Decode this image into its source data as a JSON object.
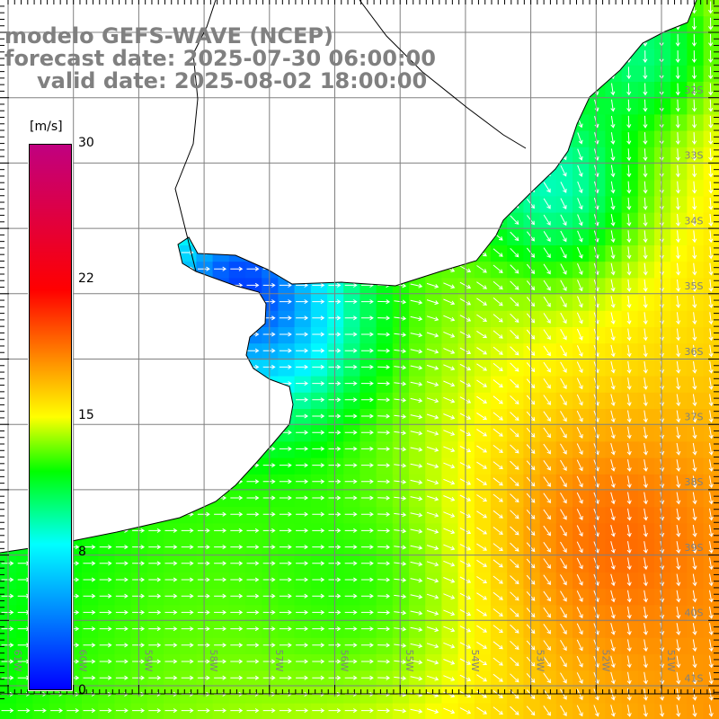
{
  "title": {
    "line1": "modelo GEFS-WAVE (NCEP)",
    "line2": "forecast date: 2025-07-30 06:00:00",
    "line3": "valid date: 2025-08-02 18:00:00"
  },
  "colorbar": {
    "units": "[m/s]",
    "ticks": [
      "30",
      "22",
      "15",
      "8",
      "0"
    ],
    "colors": [
      "#0000ff",
      "#00ffff",
      "#00ff00",
      "#ffff00",
      "#ff0000",
      "#c00080"
    ]
  },
  "map": {
    "lat_labels": [
      "32S",
      "33S",
      "34S",
      "35S",
      "36S",
      "37S",
      "38S",
      "39S",
      "40S",
      "41S"
    ],
    "lon_labels": [
      "61W",
      "60W",
      "59W",
      "58W",
      "57W",
      "56W",
      "55W",
      "54W",
      "53W",
      "52W",
      "51W"
    ],
    "grid_color": "#808080",
    "coast_color": "#000000"
  }
}
